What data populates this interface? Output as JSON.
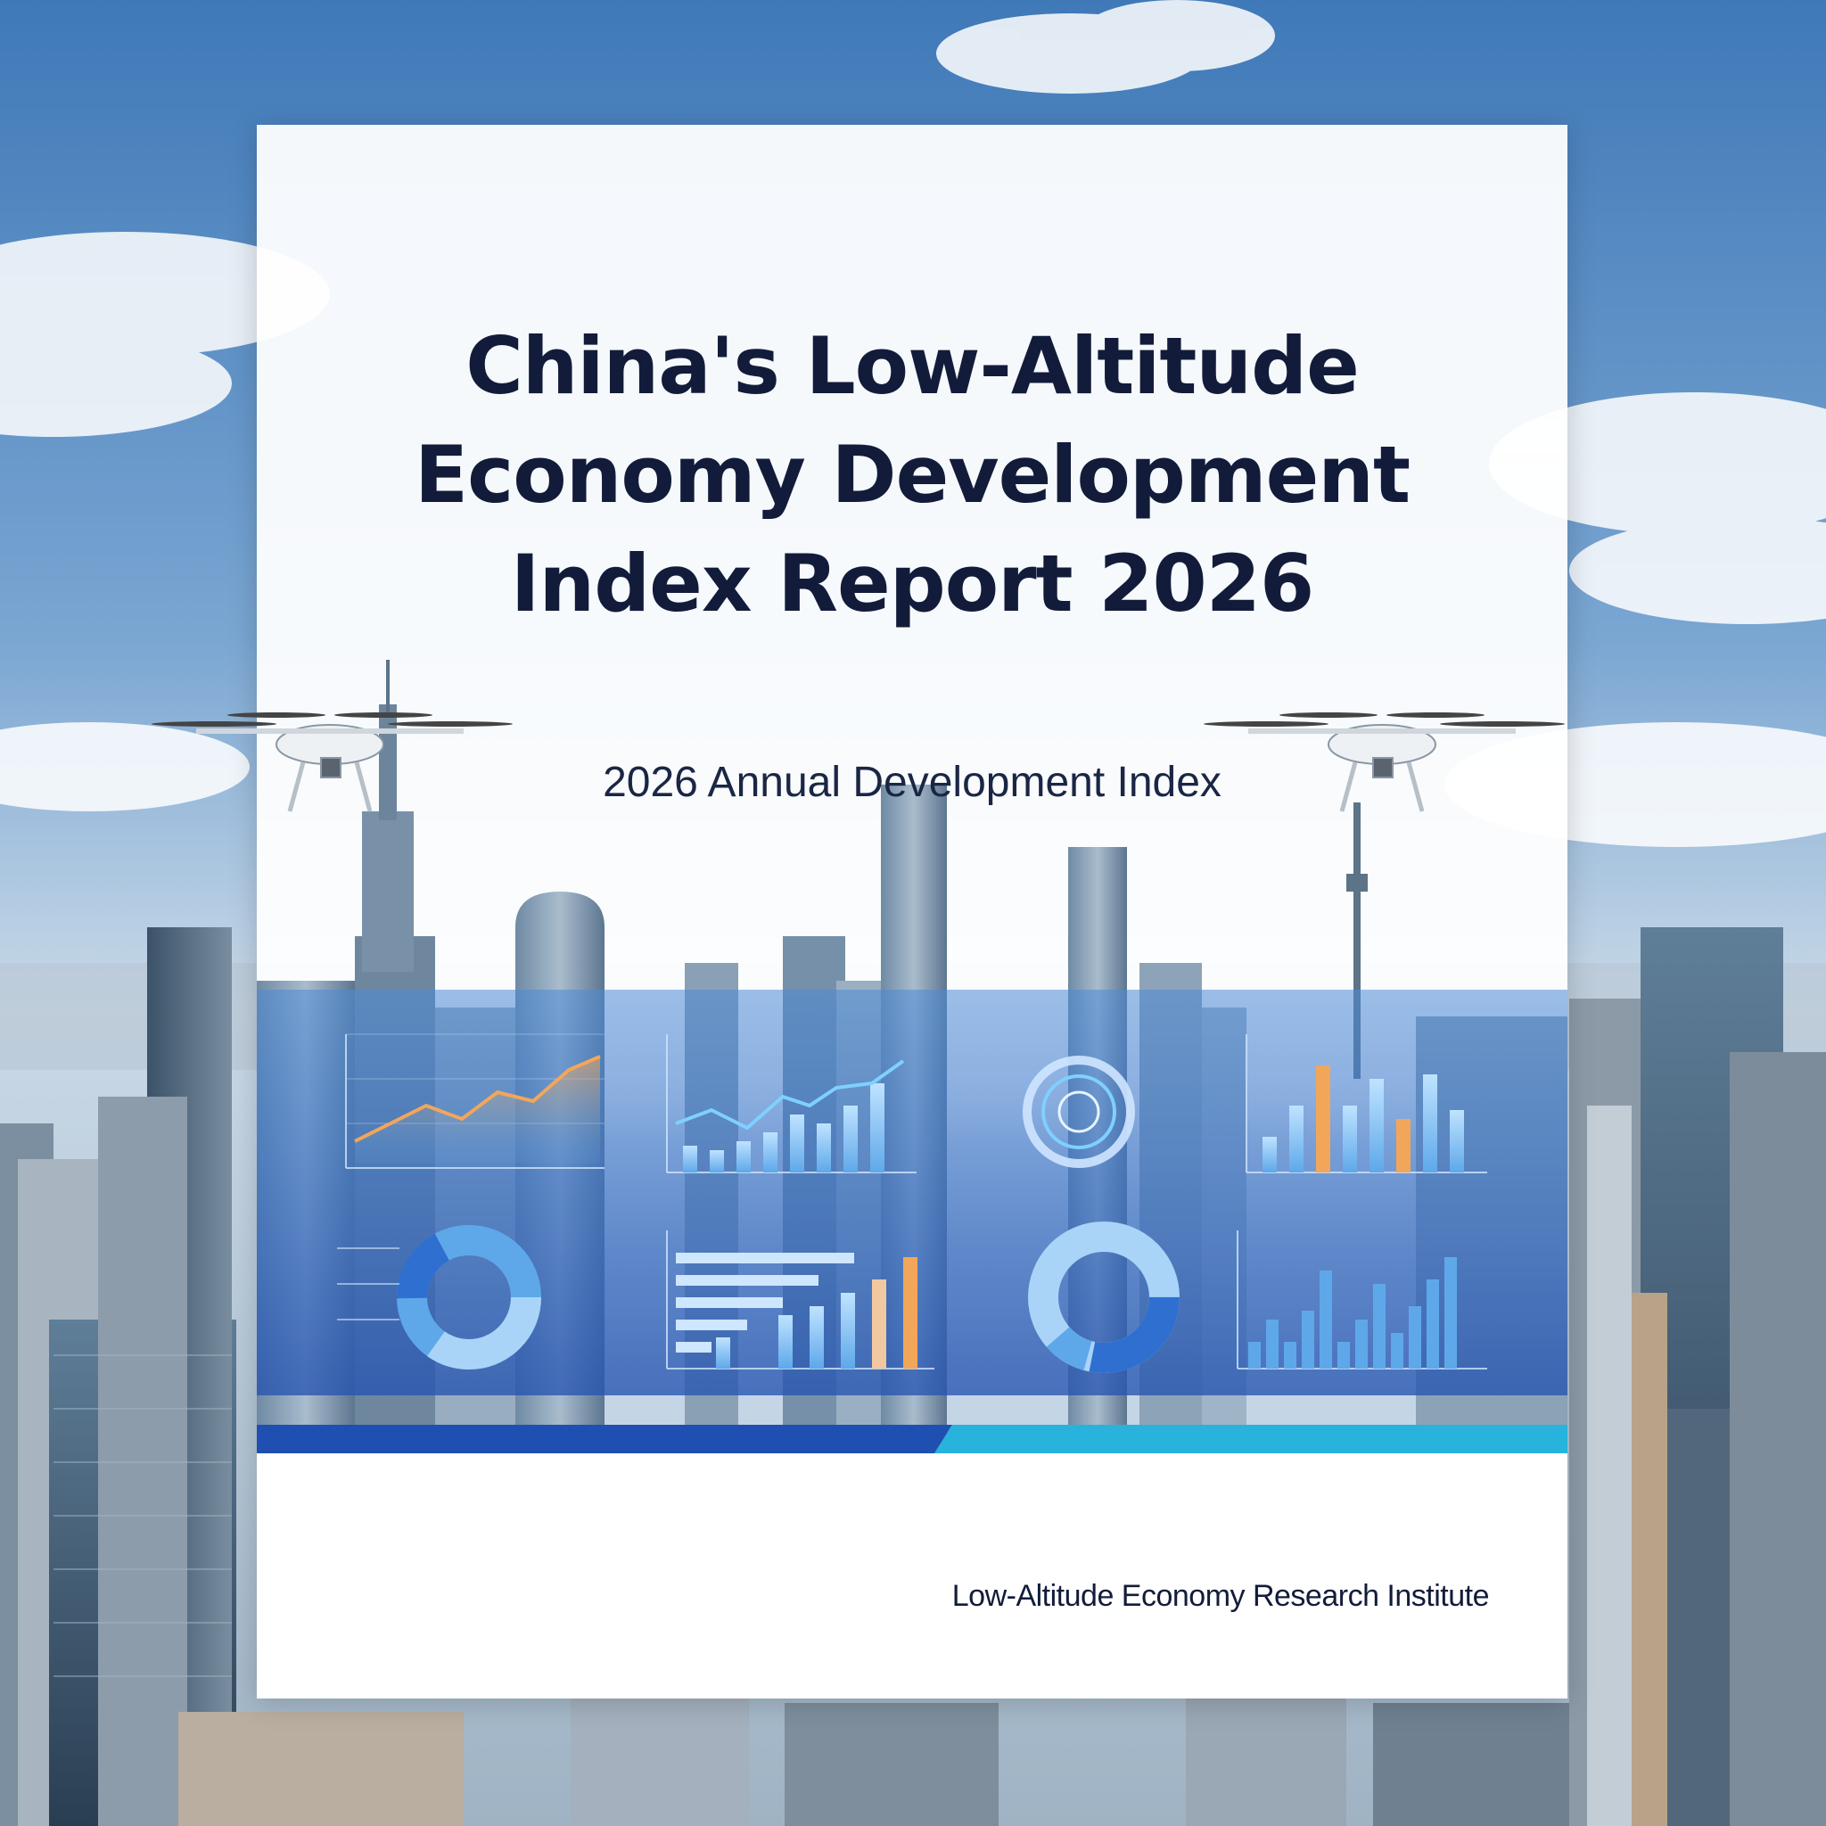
{
  "cover": {
    "title": "China's Low-Altitude Economy Development Index Report 2026",
    "subtitle": "2026 Annual Development Index",
    "publisher": "Low-Altitude Economy Research Institute"
  },
  "colors": {
    "title_text": "#121c3a",
    "sky": "#4f86c0",
    "dashboard_blue": "#2f6fd0",
    "accent_orange": "#f0a050",
    "band_dark": "#1f4fb0",
    "band_light": "#27b3dc"
  },
  "decorations": {
    "icons": [
      "drone-icon",
      "drone-icon"
    ],
    "dashboard": [
      "area-chart",
      "bar-line-chart",
      "gauge-ring",
      "bar-chart",
      "donut-chart",
      "horizontal-bar-chart",
      "donut-chart",
      "bar-chart"
    ]
  }
}
